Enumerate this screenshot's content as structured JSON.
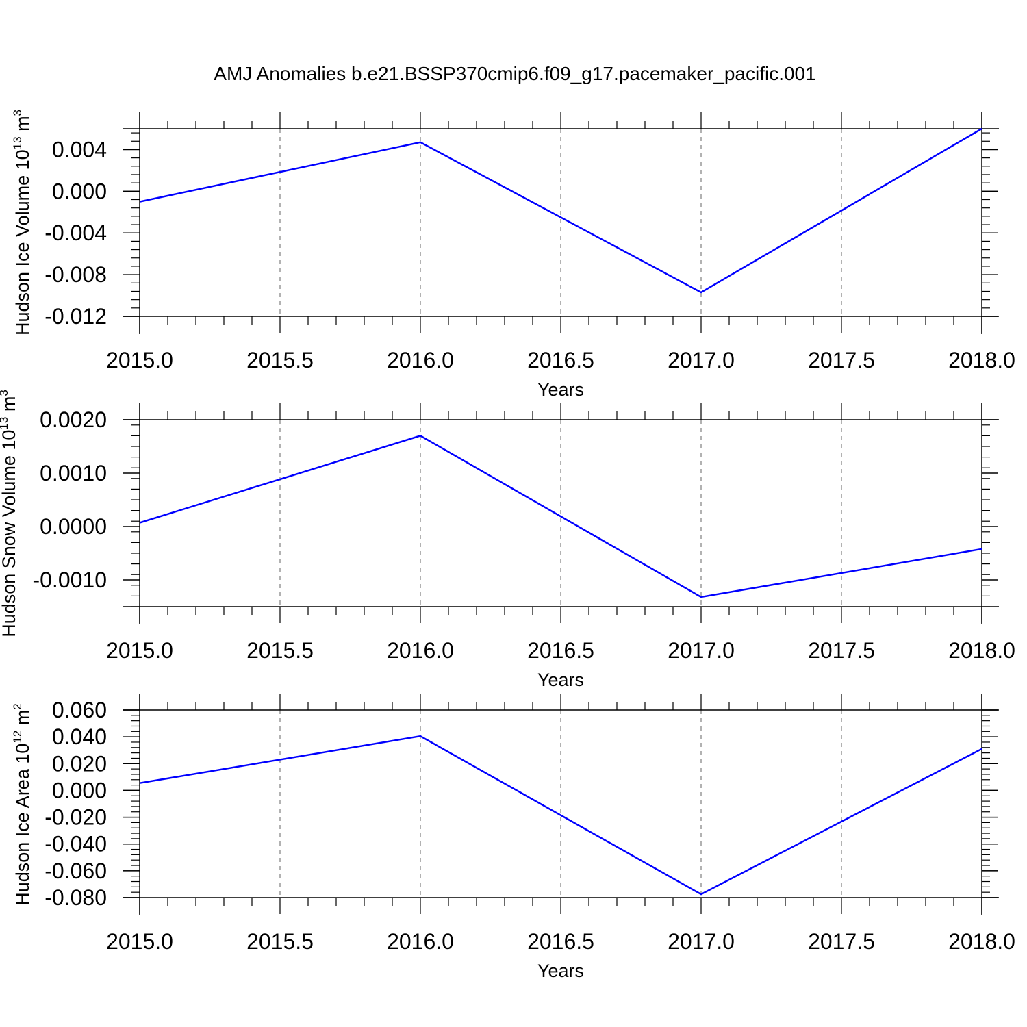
{
  "title": "AMJ Anomalies b.e21.BSSP370cmip6.f09_g17.pacemaker_pacific.001",
  "colors": {
    "line": "#0000ff",
    "axis": "#000000",
    "grid": "#999999"
  },
  "chart_data": [
    {
      "type": "line",
      "xlabel": "Years",
      "ylabel": "Hudson Ice Volume 10",
      "ylabel_exp": "13",
      "ylabel_unit": "m",
      "ylabel_unit_exp": "3",
      "x": [
        2015,
        2016,
        2017,
        2018
      ],
      "values": [
        -0.001,
        0.0047,
        -0.0097,
        0.006
      ],
      "xlim": [
        2015,
        2018
      ],
      "ylim": [
        -0.012,
        0.006
      ],
      "xticks": [
        "2015.0",
        "2015.5",
        "2016.0",
        "2016.5",
        "2017.0",
        "2017.5",
        "2018.0"
      ],
      "yticks": [
        "0.004",
        "0.000",
        "-0.004",
        "-0.008",
        "-0.012"
      ],
      "grid": "vertical dashed at major x ticks"
    },
    {
      "type": "line",
      "xlabel": "Years",
      "ylabel": "Hudson Snow Volume 10",
      "ylabel_exp": "13",
      "ylabel_unit": "m",
      "ylabel_unit_exp": "3",
      "x": [
        2015,
        2016,
        2017,
        2018
      ],
      "values": [
        7e-05,
        0.0017,
        -0.00132,
        -0.00042
      ],
      "xlim": [
        2015,
        2018
      ],
      "ylim": [
        -0.0015,
        0.002
      ],
      "xticks": [
        "2015.0",
        "2015.5",
        "2016.0",
        "2016.5",
        "2017.0",
        "2017.5",
        "2018.0"
      ],
      "yticks": [
        "0.0020",
        "0.0010",
        "0.0000",
        "-0.0010"
      ],
      "grid": "vertical dashed at major x ticks"
    },
    {
      "type": "line",
      "xlabel": "Years",
      "ylabel": "Hudson Ice Area 10",
      "ylabel_exp": "12",
      "ylabel_unit": "m",
      "ylabel_unit_exp": "2",
      "x": [
        2015,
        2016,
        2017,
        2018
      ],
      "values": [
        0.0055,
        0.0405,
        -0.0775,
        0.031
      ],
      "xlim": [
        2015,
        2018
      ],
      "ylim": [
        -0.08,
        0.06
      ],
      "xticks": [
        "2015.0",
        "2015.5",
        "2016.0",
        "2016.5",
        "2017.0",
        "2017.5",
        "2018.0"
      ],
      "yticks": [
        "0.060",
        "0.040",
        "0.020",
        "0.000",
        "-0.020",
        "-0.040",
        "-0.060",
        "-0.080"
      ],
      "grid": "vertical dashed at major x ticks"
    }
  ]
}
